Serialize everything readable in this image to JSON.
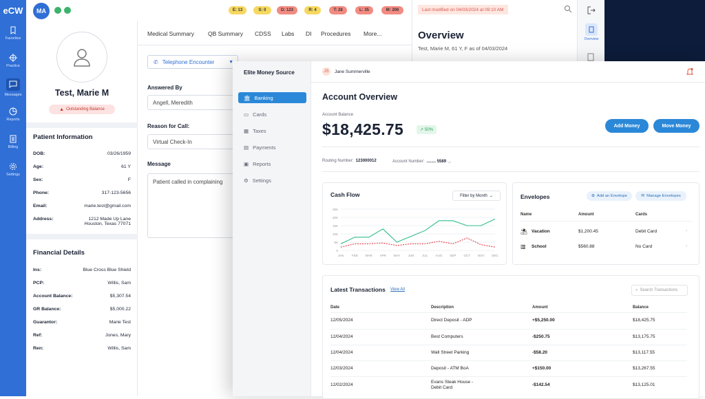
{
  "app": {
    "logo": "eCW"
  },
  "nav": {
    "items": [
      {
        "label": "Favorites",
        "icon": "bookmark-icon"
      },
      {
        "label": "Practice",
        "icon": "crosshair-icon"
      },
      {
        "label": "Messages",
        "icon": "message-icon"
      },
      {
        "label": "Reports",
        "icon": "pie-chart-icon"
      },
      {
        "label": "Billing",
        "icon": "document-icon"
      },
      {
        "label": "Settings",
        "icon": "gear-icon"
      }
    ],
    "active": "Messages"
  },
  "topbar": {
    "avatar": "MA",
    "pills": [
      {
        "label": "E: 13",
        "color": "#f6d860"
      },
      {
        "label": "S: 0",
        "color": "#f6d860"
      },
      {
        "label": "D: 123",
        "color": "#f28b82"
      },
      {
        "label": "R: 4",
        "color": "#f6d860"
      },
      {
        "label": "T: 28",
        "color": "#f28b82"
      },
      {
        "label": "L: 35",
        "color": "#f28b82"
      },
      {
        "label": "M: 206",
        "color": "#f28b82"
      }
    ]
  },
  "patient": {
    "name": "Test, Marie M",
    "badge": "Outstanding Balance",
    "info_title": "Patient Information",
    "info": [
      {
        "k": "DOB:",
        "v": "03/26/1959"
      },
      {
        "k": "Age:",
        "v": "61 Y"
      },
      {
        "k": "Sex:",
        "v": "F"
      },
      {
        "k": "Phone:",
        "v": "317-123-5656"
      },
      {
        "k": "Email:",
        "v": "marie.test@gmail.com"
      },
      {
        "k": "Address:",
        "v": "1212 Made Up Lane",
        "v2": "Houston, Texas 77071"
      }
    ],
    "fin_title": "Financial Details",
    "fin": [
      {
        "k": "Ins:",
        "v": "Blue Cross Blue Shield"
      },
      {
        "k": "PCP:",
        "v": "Willis, Sam"
      },
      {
        "k": "Account Balance:",
        "v": "$5,307.54"
      },
      {
        "k": "GR Balance:",
        "v": "$5,000.22"
      },
      {
        "k": "Guarantor:",
        "v": "Marie Test"
      },
      {
        "k": "Ref:",
        "v": "Jones, Mary"
      },
      {
        "k": "Ren:",
        "v": "Willis, Sam"
      }
    ]
  },
  "tabs": [
    "Medical Summary",
    "QB Summary",
    "CDSS",
    "Labs",
    "DI",
    "Procedures",
    "More..."
  ],
  "encounter": {
    "type": "Telephone Encounter",
    "answered_by_label": "Answered By",
    "answered_by": "Angell, Meredith",
    "reason_label": "Reason for Call:",
    "reason": "Virtual Check-In",
    "message_label": "Message",
    "message": "Patient called in complaining"
  },
  "overview": {
    "modified": "Last modified on 04/03/2024 at 09:10 AM",
    "title": "Overview",
    "subtitle": "Test, Marie M, 61 Y, F as of 04/03/2024",
    "right_tab": "Overview"
  },
  "finance": {
    "brand": "Elite Money Source",
    "menu": [
      {
        "label": "Banking",
        "icon": "bank-icon"
      },
      {
        "label": "Cards",
        "icon": "card-icon"
      },
      {
        "label": "Taxes",
        "icon": "taxes-icon"
      },
      {
        "label": "Payments",
        "icon": "payments-icon"
      },
      {
        "label": "Reports",
        "icon": "reports-icon"
      },
      {
        "label": "Settings",
        "icon": "gear-icon"
      }
    ],
    "user": {
      "initials": "JS",
      "name": "Jane Summerville"
    },
    "title": "Account Overview",
    "balance_label": "Account Balance",
    "balance": "$18,425.75",
    "balance_change": "50%",
    "add_money": "Add Money",
    "move_money": "Move Money",
    "routing_label": "Routing Number:",
    "routing": "123000012",
    "account_label": "Account Number:",
    "account": "........ 5589",
    "cashflow": {
      "title": "Cash Flow",
      "filter": "Filter by Month"
    },
    "envelopes": {
      "title": "Envelopes",
      "add": "Add an Envelope",
      "manage": "Manage Envelopes",
      "headers": [
        "Name",
        "Amount",
        "Cards"
      ],
      "rows": [
        {
          "name": "Vacation",
          "amount": "$1,200.45",
          "cards": "Debit Card",
          "icon": "palm-tree-icon"
        },
        {
          "name": "School",
          "amount": "$560.88",
          "cards": "No Card",
          "icon": "books-icon"
        }
      ]
    },
    "transactions": {
      "title": "Latest Transactions",
      "view_all": "View All",
      "search_placeholder": "Search Transactions",
      "headers": [
        "Date",
        "Description",
        "Amount",
        "Balance"
      ],
      "rows": [
        {
          "date": "12/05/2024",
          "desc": "Direct Deposit - ADP",
          "desc2": "",
          "amount": "+$5,250.00",
          "balance": "$18,425.75"
        },
        {
          "date": "12/04/2024",
          "desc": "Best Computers",
          "desc2": "",
          "amount": "-$250.75",
          "balance": "$13,175.75"
        },
        {
          "date": "12/04/2024",
          "desc": "Wall Street Parking",
          "desc2": "",
          "amount": "-$58.20",
          "balance": "$13,117.55"
        },
        {
          "date": "12/03/2024",
          "desc": "Deposit - ATM BoA",
          "desc2": "",
          "amount": "+$150.00",
          "balance": "$13,267.55"
        },
        {
          "date": "12/02/2024",
          "desc": "Evans Steak House -",
          "desc2": "Debit Card",
          "amount": "-$142.54",
          "balance": "$13,125.01"
        }
      ]
    }
  },
  "chart_data": {
    "type": "line",
    "title": "Cash Flow",
    "categories": [
      "JAN",
      "FEB",
      "MAR",
      "APR",
      "MAY",
      "JUN",
      "JUL",
      "AUG",
      "SEP",
      "OCT",
      "NOV",
      "DEC"
    ],
    "y_ticks": [
      "25K",
      "20K",
      "15K",
      "10K",
      "5K",
      "0"
    ],
    "ylim": [
      0,
      25000
    ],
    "series": [
      {
        "color": "#2ebd85",
        "style": "solid",
        "values": [
          4000,
          8000,
          8000,
          13000,
          5000,
          8500,
          12000,
          18000,
          18000,
          15000,
          15000,
          19000
        ]
      },
      {
        "color": "#e63946",
        "style": "dashed",
        "values": [
          2000,
          4000,
          4000,
          4500,
          3000,
          4000,
          4000,
          5500,
          4000,
          7500,
          3500,
          2000
        ]
      }
    ]
  }
}
